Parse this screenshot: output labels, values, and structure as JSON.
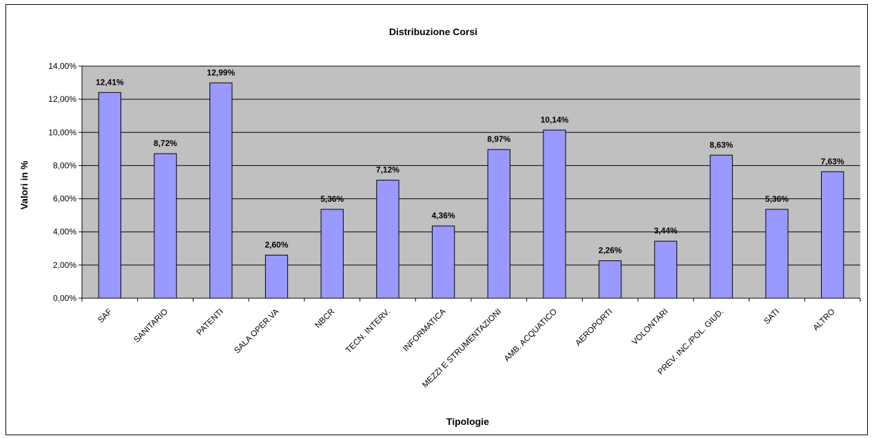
{
  "chart_data": {
    "type": "bar",
    "title": "Distribuzione Corsi",
    "xlabel": "Tipologie",
    "ylabel": "Valori in %",
    "categories": [
      "SAF",
      "SANITARIO",
      "PATENTI",
      "SALA OPER.VA",
      "NBCR",
      "TECN. INTERV.",
      "INFORMATICA",
      "MEZZI E STRUMENTAZIONI",
      "AMB. ACQUATICO",
      "AEROPORTI",
      "VOLONTARI",
      "PREV. INC./POL. GIUD.",
      "SATI",
      "ALTRO"
    ],
    "values": [
      12.41,
      8.72,
      12.99,
      2.6,
      5.36,
      7.12,
      4.36,
      8.97,
      10.14,
      2.26,
      3.44,
      8.63,
      5.36,
      7.63
    ],
    "data_labels": [
      "12,41%",
      "8,72%",
      "12,99%",
      "2,60%",
      "5,36%",
      "7,12%",
      "4,36%",
      "8,97%",
      "10,14%",
      "2,26%",
      "3,44%",
      "8,63%",
      "5,36%",
      "7,63%"
    ],
    "y_ticks": [
      0,
      2,
      4,
      6,
      8,
      10,
      12,
      14
    ],
    "y_tick_labels": [
      "0,00%",
      "2,00%",
      "4,00%",
      "6,00%",
      "8,00%",
      "10,00%",
      "12,00%",
      "14,00%"
    ],
    "ylim": [
      0,
      14
    ],
    "grid": true,
    "legend": "none",
    "colors": {
      "bar": "#9999ff",
      "plot_bg": "#c0c0c0",
      "grid": "#000000"
    }
  }
}
